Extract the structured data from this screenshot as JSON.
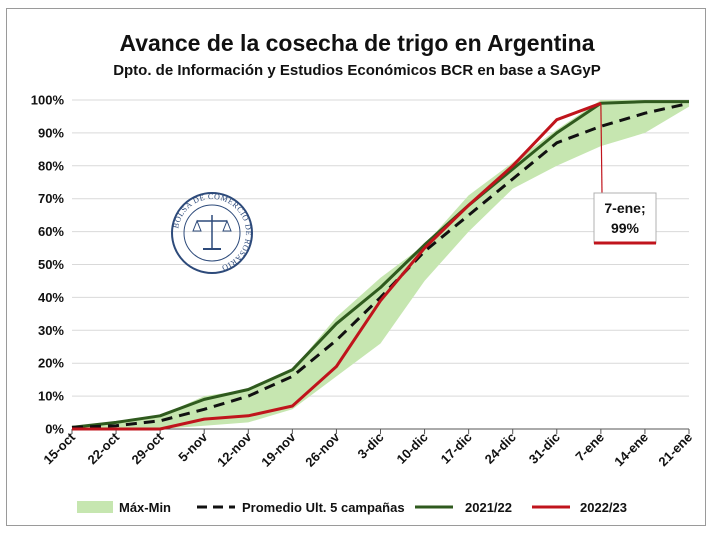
{
  "colors": {
    "band": "#c6e6b0",
    "avg": "#111111",
    "s2122": "#2f5a1e",
    "s2223": "#c0141c",
    "grid": "#d9d9d9",
    "axis": "#555555",
    "logo": "#2d4a7a"
  },
  "logo": {
    "text": "BOLSA DE COMERCIO DE ROSARIO",
    "icon": "scales-of-justice-seal-icon"
  },
  "chart_data": {
    "type": "line",
    "title": "Avance de la cosecha de trigo en Argentina",
    "subtitle": "Dpto. de Información y Estudios Económicos BCR en base a SAGyP",
    "xlabel": "",
    "ylabel": "",
    "categories": [
      "15-oct",
      "22-oct",
      "29-oct",
      "5-nov",
      "12-nov",
      "19-nov",
      "26-nov",
      "3-dic",
      "10-dic",
      "17-dic",
      "24-dic",
      "31-dic",
      "7-ene",
      "14-ene",
      "21-ene"
    ],
    "ylim": [
      0,
      100
    ],
    "yticks": [
      "0%",
      "10%",
      "20%",
      "30%",
      "40%",
      "50%",
      "60%",
      "70%",
      "80%",
      "90%",
      "100%"
    ],
    "grid": true,
    "legend_position": "bottom",
    "band": {
      "name": "Máx-Min",
      "max": [
        1,
        2,
        4,
        10,
        12,
        18,
        34,
        46,
        56,
        71,
        81,
        91,
        100,
        100,
        100
      ],
      "min": [
        0,
        0,
        0,
        1,
        2,
        6,
        16,
        26,
        45,
        60,
        73,
        80,
        86,
        90,
        98
      ]
    },
    "series": [
      {
        "name": "Promedio Ult. 5 campañas",
        "values": [
          0.5,
          1,
          2.5,
          6,
          10,
          16,
          27,
          40,
          54,
          65,
          76,
          87,
          92,
          96,
          99
        ]
      },
      {
        "name": "2021/22",
        "values": [
          0.5,
          2,
          4,
          9,
          12,
          18,
          32,
          43,
          56,
          68,
          79,
          90,
          99,
          99.5,
          99.5
        ]
      },
      {
        "name": "2022/23",
        "values": [
          0,
          0,
          0,
          3,
          4,
          7,
          19,
          39,
          55,
          68,
          80,
          94,
          99,
          null,
          null
        ]
      }
    ],
    "annotation": {
      "line1": "7-ene;",
      "line2": "99%",
      "category_index": 12,
      "value": 99
    }
  }
}
